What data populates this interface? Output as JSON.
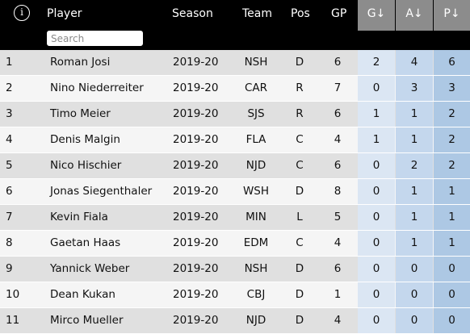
{
  "header": {
    "info_icon": "i",
    "player": "Player",
    "season": "Season",
    "team": "Team",
    "pos": "Pos",
    "gp": "GP",
    "g": "G↓",
    "a": "A↓",
    "p": "P↓"
  },
  "search": {
    "placeholder": "Search",
    "value": ""
  },
  "colors": {
    "header_bg": "#000000",
    "sort_header_bg": "#8c8c8c",
    "row_odd": "#e0e0e0",
    "row_even": "#f5f5f5",
    "stat_shades": [
      "#dbe6f3",
      "#c4d7ed",
      "#adc8e4"
    ]
  },
  "rows": [
    {
      "rank": "1",
      "player": "Roman Josi",
      "season": "2019-20",
      "team": "NSH",
      "pos": "D",
      "gp": "6",
      "g": "2",
      "a": "4",
      "p": "6"
    },
    {
      "rank": "2",
      "player": "Nino Niederreiter",
      "season": "2019-20",
      "team": "CAR",
      "pos": "R",
      "gp": "7",
      "g": "0",
      "a": "3",
      "p": "3"
    },
    {
      "rank": "3",
      "player": "Timo Meier",
      "season": "2019-20",
      "team": "SJS",
      "pos": "R",
      "gp": "6",
      "g": "1",
      "a": "1",
      "p": "2"
    },
    {
      "rank": "4",
      "player": "Denis Malgin",
      "season": "2019-20",
      "team": "FLA",
      "pos": "C",
      "gp": "4",
      "g": "1",
      "a": "1",
      "p": "2"
    },
    {
      "rank": "5",
      "player": "Nico Hischier",
      "season": "2019-20",
      "team": "NJD",
      "pos": "C",
      "gp": "6",
      "g": "0",
      "a": "2",
      "p": "2"
    },
    {
      "rank": "6",
      "player": "Jonas Siegenthaler",
      "season": "2019-20",
      "team": "WSH",
      "pos": "D",
      "gp": "8",
      "g": "0",
      "a": "1",
      "p": "1"
    },
    {
      "rank": "7",
      "player": "Kevin Fiala",
      "season": "2019-20",
      "team": "MIN",
      "pos": "L",
      "gp": "5",
      "g": "0",
      "a": "1",
      "p": "1"
    },
    {
      "rank": "8",
      "player": "Gaetan Haas",
      "season": "2019-20",
      "team": "EDM",
      "pos": "C",
      "gp": "4",
      "g": "0",
      "a": "1",
      "p": "1"
    },
    {
      "rank": "9",
      "player": "Yannick Weber",
      "season": "2019-20",
      "team": "NSH",
      "pos": "D",
      "gp": "6",
      "g": "0",
      "a": "0",
      "p": "0"
    },
    {
      "rank": "10",
      "player": "Dean Kukan",
      "season": "2019-20",
      "team": "CBJ",
      "pos": "D",
      "gp": "1",
      "g": "0",
      "a": "0",
      "p": "0"
    },
    {
      "rank": "11",
      "player": "Mirco Mueller",
      "season": "2019-20",
      "team": "NJD",
      "pos": "D",
      "gp": "4",
      "g": "0",
      "a": "0",
      "p": "0"
    }
  ]
}
